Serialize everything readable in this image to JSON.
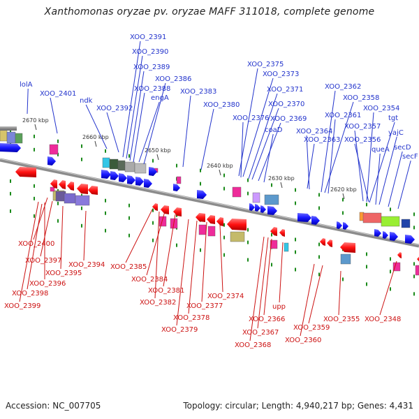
{
  "title": "Xanthomonas oryzae pv. oryzae MAFF 311018, complete genome",
  "footer": {
    "accession": "Accession: NC_007705",
    "summary": "Topology: circular; Length: 4,940,217 bp; Genes: 4,431"
  },
  "ticks": [
    {
      "label": "2670 kbp"
    },
    {
      "label": "2660 kbp"
    },
    {
      "label": "2650 kbp"
    },
    {
      "label": "2640 kbp"
    },
    {
      "label": "2630 kbp"
    },
    {
      "label": "2620 kbp"
    }
  ],
  "top_genes": [
    {
      "label": "lolA"
    },
    {
      "label": "XOO_2401"
    },
    {
      "label": "ndk"
    },
    {
      "label": "XOO_2392"
    },
    {
      "label": "XOO_2391"
    },
    {
      "label": "XOO_2390"
    },
    {
      "label": "XOO_2389"
    },
    {
      "label": "XOO_2388"
    },
    {
      "label": "XOO_2386"
    },
    {
      "label": "engA"
    },
    {
      "label": "XOO_2383"
    },
    {
      "label": "XOO_2380"
    },
    {
      "label": "XOO_2375"
    },
    {
      "label": "XOO_2373"
    },
    {
      "label": "XOO_2371"
    },
    {
      "label": "XOO_2370"
    },
    {
      "label": "XOO_2376"
    },
    {
      "label": "XOO_2369"
    },
    {
      "label": "coaD"
    },
    {
      "label": "XOO_2364"
    },
    {
      "label": "XOO_2363"
    },
    {
      "label": "XOO_2362"
    },
    {
      "label": "XOO_2358"
    },
    {
      "label": "XOO_2361"
    },
    {
      "label": "XOO_2354"
    },
    {
      "label": "XOO_2357"
    },
    {
      "label": "tgt"
    },
    {
      "label": "XOO_2356"
    },
    {
      "label": "yajC"
    },
    {
      "label": "queA"
    },
    {
      "label": "secD"
    },
    {
      "label": "secF"
    }
  ],
  "bottom_genes": [
    {
      "label": "XOO_2400"
    },
    {
      "label": "XOO_2397"
    },
    {
      "label": "XOO_2395"
    },
    {
      "label": "XOO_2394"
    },
    {
      "label": "XOO_2396"
    },
    {
      "label": "XOO_2398"
    },
    {
      "label": "XOO_2399"
    },
    {
      "label": "XOO_2385"
    },
    {
      "label": "XOO_2384"
    },
    {
      "label": "XOO_2381"
    },
    {
      "label": "XOO_2382"
    },
    {
      "label": "XOO_2374"
    },
    {
      "label": "XOO_2377"
    },
    {
      "label": "XOO_2378"
    },
    {
      "label": "XOO_2379"
    },
    {
      "label": "upp"
    },
    {
      "label": "XOO_2366"
    },
    {
      "label": "XOO_2367"
    },
    {
      "label": "XOO_2368"
    },
    {
      "label": "XOO_2359"
    },
    {
      "label": "XOO_2360"
    },
    {
      "label": "XOO_2355"
    },
    {
      "label": "XOO_2348"
    }
  ],
  "colors": {
    "forward_strand": "#1a1aff",
    "reverse_strand": "#ff1111",
    "backbone": "#8c8c8c",
    "top_label": "#2233cc",
    "bottom_label": "#cc1111",
    "tick_marks": "#1a8a1a"
  }
}
